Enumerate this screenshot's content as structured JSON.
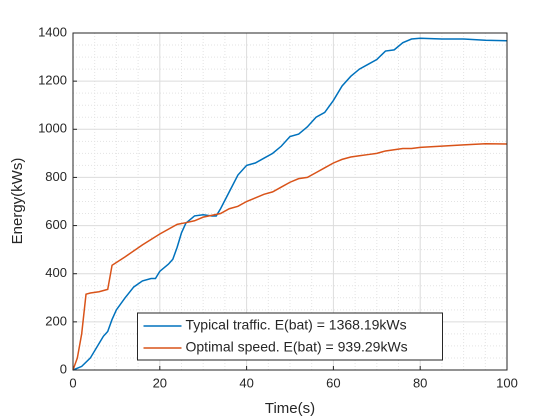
{
  "chart_data": {
    "type": "line",
    "xlabel": "Time(s)",
    "ylabel": "Energy(kWs)",
    "xlim": [
      0,
      100
    ],
    "xticks": [
      0,
      20,
      40,
      60,
      80,
      100
    ],
    "ylim": [
      0,
      1400
    ],
    "yticks": [
      0,
      200,
      400,
      600,
      800,
      1000,
      1200,
      1400
    ],
    "grid": true,
    "minor_grid": true,
    "legend": "south",
    "series": [
      {
        "name": "Typical traffic. E(bat) = 1368.19kWs",
        "color": "#0072bd",
        "x": [
          0,
          2,
          4,
          6,
          7,
          8,
          9,
          10,
          12,
          14,
          16,
          18,
          19,
          20,
          22,
          23,
          24,
          25,
          26,
          27,
          28,
          30,
          32,
          33,
          34,
          36,
          38,
          40,
          42,
          44,
          46,
          48,
          50,
          52,
          54,
          56,
          58,
          60,
          62,
          64,
          66,
          68,
          70,
          72,
          74,
          76,
          78,
          80,
          85,
          90,
          95,
          100
        ],
        "values": [
          0,
          15,
          50,
          110,
          140,
          160,
          210,
          250,
          300,
          345,
          370,
          380,
          380,
          410,
          440,
          460,
          510,
          570,
          610,
          625,
          640,
          645,
          640,
          640,
          670,
          740,
          810,
          850,
          860,
          880,
          900,
          930,
          970,
          980,
          1010,
          1050,
          1070,
          1120,
          1180,
          1220,
          1250,
          1270,
          1290,
          1325,
          1330,
          1360,
          1375,
          1378,
          1375,
          1375,
          1370,
          1368
        ]
      },
      {
        "name": "Optimal speed. E(bat) = 939.29kWs",
        "color": "#d95319",
        "x": [
          0,
          1,
          2,
          3,
          4,
          6,
          8,
          9,
          12,
          16,
          20,
          24,
          26,
          28,
          30,
          34,
          36,
          38,
          40,
          42,
          44,
          46,
          48,
          50,
          52,
          54,
          56,
          58,
          60,
          62,
          64,
          66,
          68,
          70,
          72,
          74,
          76,
          78,
          80,
          85,
          90,
          95,
          100
        ],
        "values": [
          0,
          50,
          150,
          315,
          320,
          325,
          335,
          435,
          470,
          520,
          565,
          605,
          612,
          620,
          635,
          650,
          670,
          680,
          700,
          715,
          730,
          740,
          760,
          780,
          795,
          800,
          820,
          840,
          860,
          875,
          885,
          890,
          895,
          900,
          910,
          915,
          920,
          920,
          925,
          930,
          935,
          940,
          939
        ]
      }
    ]
  }
}
